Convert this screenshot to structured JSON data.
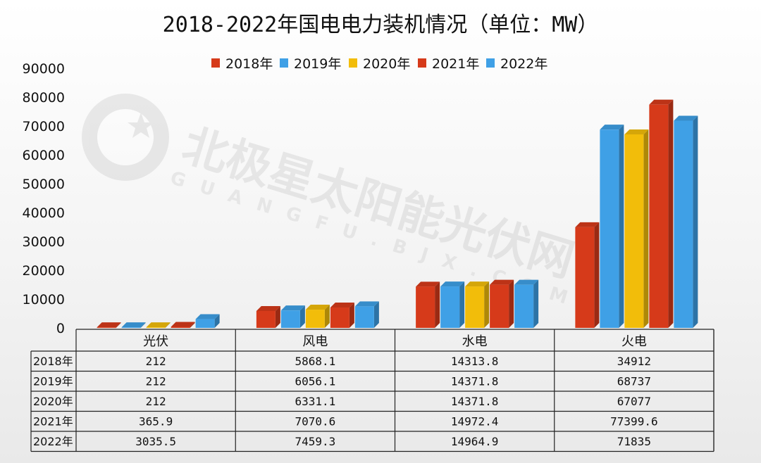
{
  "chart_data": {
    "type": "bar",
    "title": "2018-2022年国电电力装机情况（单位：MW）",
    "categories": [
      "光伏",
      "风电",
      "水电",
      "火电"
    ],
    "series": [
      {
        "name": "2018年",
        "color": "#d63a1a",
        "values": [
          212,
          5868.1,
          14313.8,
          34912
        ],
        "labels": [
          "212",
          "5868.1",
          "14313.8",
          "34912"
        ]
      },
      {
        "name": "2019年",
        "color": "#3fa0e6",
        "values": [
          212,
          6056.1,
          14371.8,
          68737
        ],
        "labels": [
          "212",
          "6056.1",
          "14371.8",
          "68737"
        ]
      },
      {
        "name": "2020年",
        "color": "#f2bd0a",
        "values": [
          212,
          6331.1,
          14371.8,
          67077
        ],
        "labels": [
          "212",
          "6331.1",
          "14371.8",
          "67077"
        ]
      },
      {
        "name": "2021年",
        "color": "#d63a1a",
        "values": [
          365.9,
          7070.6,
          14972.4,
          77399.6
        ],
        "labels": [
          "365.9",
          "7070.6",
          "14972.4",
          "77399.6"
        ]
      },
      {
        "name": "2022年",
        "color": "#3fa0e6",
        "values": [
          3035.5,
          7459.3,
          14964.9,
          71835
        ],
        "labels": [
          "3035.5",
          "7459.3",
          "14964.9",
          "71835"
        ]
      }
    ],
    "ylim": [
      0,
      90000
    ],
    "yticks": [
      "0",
      "10000",
      "20000",
      "30000",
      "40000",
      "50000",
      "60000",
      "70000",
      "80000",
      "90000"
    ],
    "legend": "top-center",
    "grid": false,
    "data_table": true
  },
  "watermark": {
    "text": "北极星太阳能光伏网",
    "subtext": "GUANGFU.BJX.COM.CN"
  }
}
